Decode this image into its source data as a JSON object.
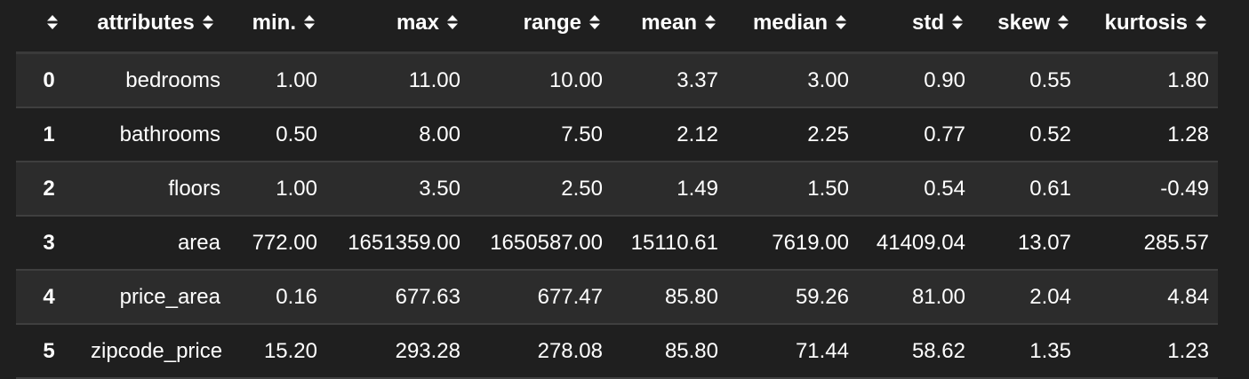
{
  "table": {
    "columns": [
      {
        "key": "index",
        "label": ""
      },
      {
        "key": "attributes",
        "label": "attributes"
      },
      {
        "key": "min",
        "label": "min."
      },
      {
        "key": "max",
        "label": "max"
      },
      {
        "key": "range",
        "label": "range"
      },
      {
        "key": "mean",
        "label": "mean"
      },
      {
        "key": "median",
        "label": "median"
      },
      {
        "key": "std",
        "label": "std"
      },
      {
        "key": "skew",
        "label": "skew"
      },
      {
        "key": "kurtosis",
        "label": "kurtosis"
      }
    ],
    "rows": [
      {
        "index": "0",
        "attributes": "bedrooms",
        "min": "1.00",
        "max": "11.00",
        "range": "10.00",
        "mean": "3.37",
        "median": "3.00",
        "std": "0.90",
        "skew": "0.55",
        "kurtosis": "1.80"
      },
      {
        "index": "1",
        "attributes": "bathrooms",
        "min": "0.50",
        "max": "8.00",
        "range": "7.50",
        "mean": "2.12",
        "median": "2.25",
        "std": "0.77",
        "skew": "0.52",
        "kurtosis": "1.28"
      },
      {
        "index": "2",
        "attributes": "floors",
        "min": "1.00",
        "max": "3.50",
        "range": "2.50",
        "mean": "1.49",
        "median": "1.50",
        "std": "0.54",
        "skew": "0.61",
        "kurtosis": "-0.49"
      },
      {
        "index": "3",
        "attributes": "area",
        "min": "772.00",
        "max": "1651359.00",
        "range": "1650587.00",
        "mean": "15110.61",
        "median": "7619.00",
        "std": "41409.04",
        "skew": "13.07",
        "kurtosis": "285.57"
      },
      {
        "index": "4",
        "attributes": "price_area",
        "min": "0.16",
        "max": "677.63",
        "range": "677.47",
        "mean": "85.80",
        "median": "59.26",
        "std": "81.00",
        "skew": "2.04",
        "kurtosis": "4.84"
      },
      {
        "index": "5",
        "attributes": "zipcode_price",
        "min": "15.20",
        "max": "293.28",
        "range": "278.08",
        "mean": "85.80",
        "median": "71.44",
        "std": "58.62",
        "skew": "1.35",
        "kurtosis": "1.23"
      }
    ],
    "sort_icon": "sort-updown-icon"
  },
  "colors": {
    "background": "#1f1f1f",
    "row_stripe": "#2c2c2c",
    "text": "#ffffff",
    "divider": "#3f3f3f"
  }
}
